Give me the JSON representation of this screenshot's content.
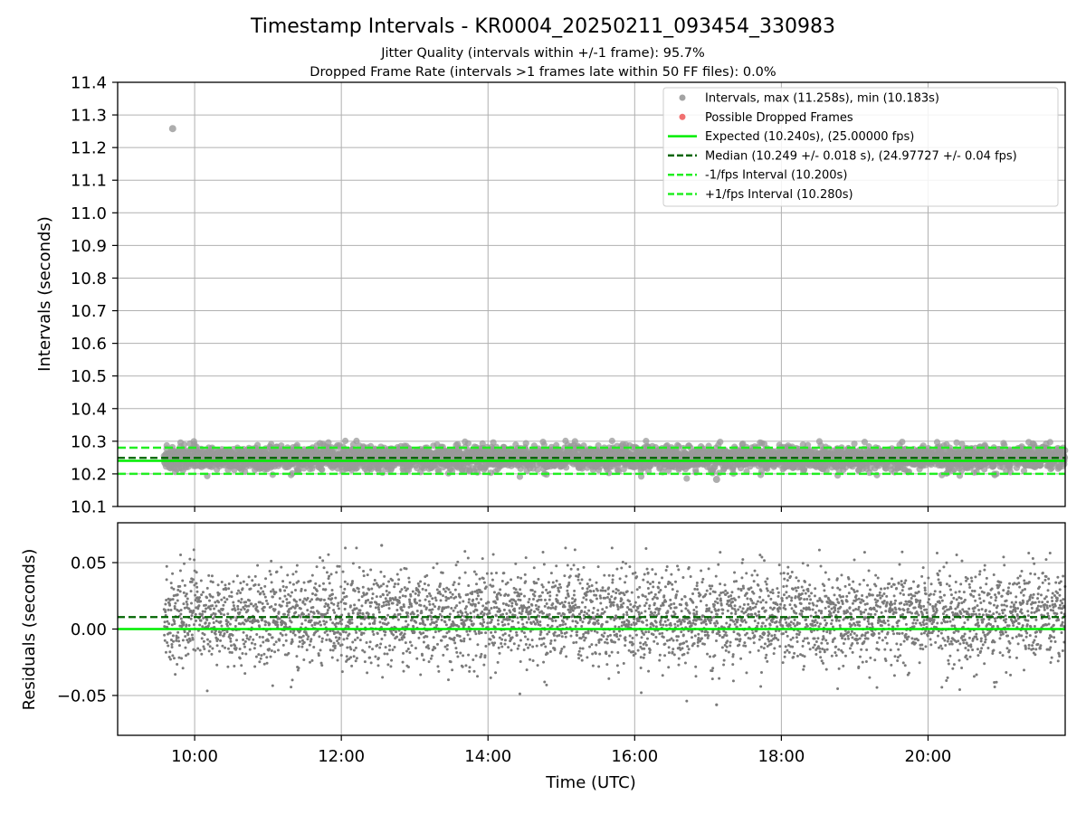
{
  "chart_data": [
    {
      "type": "scatter",
      "title": "Timestamp Intervals - KR0004_20250211_093454_330983",
      "subtitle_lines": [
        "Jitter Quality (intervals within +/-1 frame): 95.7%",
        "Dropped Frame Rate (intervals >1 frames late within 50 FF files): 0.0%"
      ],
      "ylabel": "Intervals (seconds)",
      "xlim_hours": [
        8.95,
        21.87
      ],
      "ylim": [
        10.1,
        11.4
      ],
      "y_ticks": [
        "10.1",
        "10.2",
        "10.3",
        "10.4",
        "10.5",
        "10.6",
        "10.7",
        "10.8",
        "10.9",
        "11.0",
        "11.1",
        "11.2",
        "11.3",
        "11.4"
      ],
      "grid": true,
      "legend_position": "upper right",
      "legend": [
        {
          "label": "Intervals, max (11.258s), min (10.183s)",
          "marker": "dot",
          "color": "#999999"
        },
        {
          "label": "Possible Dropped Frames",
          "marker": "dot",
          "color": "#f06060"
        },
        {
          "label": "Expected (10.240s), (25.00000 fps)",
          "marker": "solid",
          "color": "#00ee00"
        },
        {
          "label": "Median (10.249 +/- 0.018 s), (24.97727 +/- 0.04 fps)",
          "marker": "dashed",
          "color": "#006400"
        },
        {
          "label": "-1/fps Interval (10.200s)",
          "marker": "dashed",
          "color": "#22ee22"
        },
        {
          "label": "+1/fps Interval (10.280s)",
          "marker": "dashed",
          "color": "#22ee22"
        }
      ],
      "reference_lines": {
        "expected": 10.24,
        "median": 10.249,
        "minus_one_fps": 10.2,
        "plus_one_fps": 10.28
      },
      "series": [
        {
          "name": "Intervals, max (11.258s), min (10.183s)",
          "x_start": "09:35",
          "x_end": "21:52",
          "count_approx": 4300,
          "center": 10.249,
          "spread": 0.018,
          "max": 11.258,
          "min": 10.183,
          "max_at": "09:42",
          "min_at": "17:07"
        }
      ]
    },
    {
      "type": "scatter",
      "ylabel": "Residuals (seconds)",
      "xlabel": "Time (UTC)",
      "xlim_hours": [
        8.95,
        21.87
      ],
      "ylim": [
        -0.08,
        0.08
      ],
      "y_ticks": [
        "0.05",
        "0.00",
        "−0.05"
      ],
      "y_tick_values": [
        0.05,
        0.0,
        -0.05
      ],
      "x_ticks": [
        "10:00",
        "12:00",
        "14:00",
        "16:00",
        "18:00",
        "20:00"
      ],
      "x_tick_values_hours": [
        10,
        12,
        14,
        16,
        18,
        20
      ],
      "grid": true,
      "reference_lines": {
        "zero": 0.0,
        "median_offset": 0.009
      },
      "series": [
        {
          "x_start": "09:35",
          "x_end": "21:52",
          "count_approx": 4300,
          "center": 0.009,
          "spread": 0.018,
          "max": 0.063,
          "min": -0.057
        }
      ]
    }
  ],
  "colors": {
    "points": "#999999",
    "residual_points": "#7a7a7a",
    "expected": "#00ee00",
    "median": "#006400",
    "fps_bounds": "#22ee22",
    "dropped": "#f06060"
  }
}
